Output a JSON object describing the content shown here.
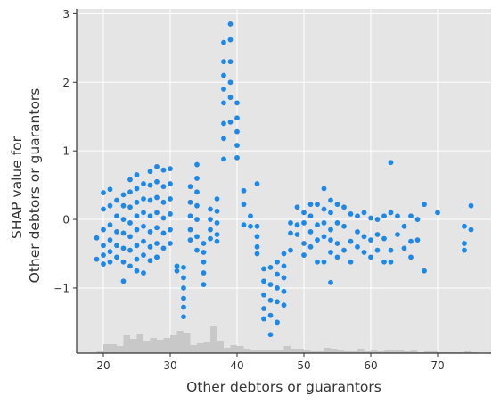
{
  "chart_data": {
    "type": "scatter",
    "title": "",
    "xlabel": "Other debtors or guarantors",
    "ylabel_lines": [
      "SHAP value for",
      "Other debtors or guarantors"
    ],
    "xlim": [
      16,
      78
    ],
    "ylim": [
      -1.95,
      3.07
    ],
    "x_ticks": [
      20,
      30,
      40,
      50,
      60,
      70
    ],
    "y_ticks": [
      -1,
      0,
      1,
      2,
      3
    ],
    "y_tick_labels": [
      "−1",
      "0",
      "1",
      "2",
      "3"
    ],
    "grid": true,
    "colors": {
      "background": "#e5e5e5",
      "grid": "#ffffff",
      "points": "#1e88e5",
      "histogram": "#c8c8c8",
      "axis": "#333333"
    },
    "histogram": {
      "bin_starts": [
        19,
        20,
        21,
        22,
        23,
        24,
        25,
        26,
        27,
        28,
        29,
        30,
        31,
        32,
        33,
        34,
        35,
        36,
        37,
        38,
        39,
        40,
        41,
        42,
        43,
        44,
        45,
        46,
        47,
        48,
        49,
        50,
        51,
        52,
        53,
        54,
        55,
        56,
        57,
        58,
        59,
        60,
        61,
        62,
        63,
        64,
        65,
        66,
        67,
        68,
        69,
        70,
        71,
        72,
        73,
        74,
        75
      ],
      "relative_heights": [
        0.02,
        0.1,
        0.1,
        0.08,
        0.2,
        0.16,
        0.22,
        0.14,
        0.17,
        0.15,
        0.17,
        0.2,
        0.25,
        0.23,
        0.09,
        0.11,
        0.12,
        0.3,
        0.14,
        0.06,
        0.09,
        0.08,
        0.05,
        0.04,
        0.04,
        0.04,
        0.04,
        0.04,
        0.08,
        0.05,
        0.05,
        0.03,
        0.02,
        0.02,
        0.06,
        0.05,
        0.04,
        0.02,
        0.02,
        0.05,
        0.02,
        0.03,
        0.02,
        0.03,
        0.04,
        0.03,
        0.02,
        0.03,
        0.01,
        0.02,
        0.02,
        0.01,
        0.01,
        0.01,
        0.01,
        0.02,
        0.01
      ]
    },
    "points": [
      {
        "x": 19,
        "y": -0.27
      },
      {
        "x": 19,
        "y": -0.58
      },
      {
        "x": 20,
        "y": 0.39
      },
      {
        "x": 20,
        "y": 0.15
      },
      {
        "x": 20,
        "y": -0.15
      },
      {
        "x": 20,
        "y": -0.38
      },
      {
        "x": 20,
        "y": -0.52
      },
      {
        "x": 20,
        "y": -0.65
      },
      {
        "x": 21,
        "y": 0.44
      },
      {
        "x": 21,
        "y": 0.2
      },
      {
        "x": 21,
        "y": -0.08
      },
      {
        "x": 21,
        "y": -0.3
      },
      {
        "x": 21,
        "y": -0.47
      },
      {
        "x": 21,
        "y": -0.62
      },
      {
        "x": 22,
        "y": 0.28
      },
      {
        "x": 22,
        "y": 0.05
      },
      {
        "x": 22,
        "y": -0.18
      },
      {
        "x": 22,
        "y": -0.38
      },
      {
        "x": 22,
        "y": -0.55
      },
      {
        "x": 23,
        "y": 0.36
      },
      {
        "x": 23,
        "y": 0.2
      },
      {
        "x": 23,
        "y": 0.0
      },
      {
        "x": 23,
        "y": -0.2
      },
      {
        "x": 23,
        "y": -0.42
      },
      {
        "x": 23,
        "y": -0.62
      },
      {
        "x": 23,
        "y": -0.9
      },
      {
        "x": 24,
        "y": 0.58
      },
      {
        "x": 24,
        "y": 0.4
      },
      {
        "x": 24,
        "y": 0.18
      },
      {
        "x": 24,
        "y": -0.05
      },
      {
        "x": 24,
        "y": -0.25
      },
      {
        "x": 24,
        "y": -0.45
      },
      {
        "x": 24,
        "y": -0.68
      },
      {
        "x": 25,
        "y": 0.65
      },
      {
        "x": 25,
        "y": 0.45
      },
      {
        "x": 25,
        "y": 0.25
      },
      {
        "x": 25,
        "y": 0.05
      },
      {
        "x": 25,
        "y": -0.15
      },
      {
        "x": 25,
        "y": -0.38
      },
      {
        "x": 25,
        "y": -0.58
      },
      {
        "x": 25,
        "y": -0.75
      },
      {
        "x": 26,
        "y": 0.52
      },
      {
        "x": 26,
        "y": 0.3
      },
      {
        "x": 26,
        "y": 0.1
      },
      {
        "x": 26,
        "y": -0.1
      },
      {
        "x": 26,
        "y": -0.32
      },
      {
        "x": 26,
        "y": -0.52
      },
      {
        "x": 26,
        "y": -0.78
      },
      {
        "x": 27,
        "y": 0.7
      },
      {
        "x": 27,
        "y": 0.5
      },
      {
        "x": 27,
        "y": 0.28
      },
      {
        "x": 27,
        "y": 0.05
      },
      {
        "x": 27,
        "y": -0.18
      },
      {
        "x": 27,
        "y": -0.4
      },
      {
        "x": 27,
        "y": -0.6
      },
      {
        "x": 28,
        "y": 0.77
      },
      {
        "x": 28,
        "y": 0.55
      },
      {
        "x": 28,
        "y": 0.32
      },
      {
        "x": 28,
        "y": 0.1
      },
      {
        "x": 28,
        "y": -0.12
      },
      {
        "x": 28,
        "y": -0.35
      },
      {
        "x": 28,
        "y": -0.55
      },
      {
        "x": 28,
        "y": -0.55
      },
      {
        "x": 29,
        "y": 0.72
      },
      {
        "x": 29,
        "y": 0.48
      },
      {
        "x": 29,
        "y": 0.25
      },
      {
        "x": 29,
        "y": 0.02
      },
      {
        "x": 29,
        "y": -0.2
      },
      {
        "x": 29,
        "y": -0.42
      },
      {
        "x": 30,
        "y": 0.74
      },
      {
        "x": 30,
        "y": 0.52
      },
      {
        "x": 30,
        "y": 0.3
      },
      {
        "x": 30,
        "y": 0.08
      },
      {
        "x": 30,
        "y": -0.15
      },
      {
        "x": 30,
        "y": -0.35
      },
      {
        "x": 31,
        "y": -0.68
      },
      {
        "x": 31,
        "y": -0.75
      },
      {
        "x": 32,
        "y": -0.7
      },
      {
        "x": 32,
        "y": -0.85
      },
      {
        "x": 32,
        "y": -1.0
      },
      {
        "x": 32,
        "y": -1.15
      },
      {
        "x": 32,
        "y": -1.28
      },
      {
        "x": 32,
        "y": -1.42
      },
      {
        "x": 33,
        "y": 0.48
      },
      {
        "x": 33,
        "y": 0.25
      },
      {
        "x": 33,
        "y": 0.05
      },
      {
        "x": 33,
        "y": -0.15
      },
      {
        "x": 33,
        "y": -0.3
      },
      {
        "x": 34,
        "y": 0.8
      },
      {
        "x": 34,
        "y": 0.6
      },
      {
        "x": 34,
        "y": 0.4
      },
      {
        "x": 34,
        "y": 0.2
      },
      {
        "x": 34,
        "y": 0.0
      },
      {
        "x": 34,
        "y": -0.25
      },
      {
        "x": 34,
        "y": -0.45
      },
      {
        "x": 35,
        "y": -0.35
      },
      {
        "x": 35,
        "y": -0.48
      },
      {
        "x": 35,
        "y": -0.62
      },
      {
        "x": 35,
        "y": -0.78
      },
      {
        "x": 35,
        "y": -0.95
      },
      {
        "x": 36,
        "y": 0.15
      },
      {
        "x": 36,
        "y": 0.0
      },
      {
        "x": 36,
        "y": -0.15
      },
      {
        "x": 36,
        "y": -0.28
      },
      {
        "x": 37,
        "y": 0.3
      },
      {
        "x": 37,
        "y": 0.12
      },
      {
        "x": 37,
        "y": -0.05
      },
      {
        "x": 37,
        "y": -0.22
      },
      {
        "x": 37,
        "y": -0.32
      },
      {
        "x": 38,
        "y": 2.58
      },
      {
        "x": 38,
        "y": 2.3
      },
      {
        "x": 38,
        "y": 2.1
      },
      {
        "x": 38,
        "y": 1.9
      },
      {
        "x": 38,
        "y": 1.7
      },
      {
        "x": 38,
        "y": 1.4
      },
      {
        "x": 38,
        "y": 1.18
      },
      {
        "x": 38,
        "y": 0.88
      },
      {
        "x": 39,
        "y": 2.85
      },
      {
        "x": 39,
        "y": 2.62
      },
      {
        "x": 39,
        "y": 2.3
      },
      {
        "x": 39,
        "y": 2.0
      },
      {
        "x": 39,
        "y": 1.78
      },
      {
        "x": 39,
        "y": 1.42
      },
      {
        "x": 40,
        "y": 1.7
      },
      {
        "x": 40,
        "y": 1.48
      },
      {
        "x": 40,
        "y": 1.28
      },
      {
        "x": 40,
        "y": 1.08
      },
      {
        "x": 40,
        "y": 0.9
      },
      {
        "x": 41,
        "y": 0.42
      },
      {
        "x": 41,
        "y": 0.22
      },
      {
        "x": 41,
        "y": -0.08
      },
      {
        "x": 42,
        "y": 0.05
      },
      {
        "x": 42,
        "y": -0.1
      },
      {
        "x": 43,
        "y": 0.52
      },
      {
        "x": 43,
        "y": -0.1
      },
      {
        "x": 43,
        "y": -0.25
      },
      {
        "x": 43,
        "y": -0.4
      },
      {
        "x": 43,
        "y": -0.5
      },
      {
        "x": 44,
        "y": -0.72
      },
      {
        "x": 44,
        "y": -0.9
      },
      {
        "x": 44,
        "y": -1.1
      },
      {
        "x": 44,
        "y": -1.3
      },
      {
        "x": 44,
        "y": -1.45
      },
      {
        "x": 45,
        "y": -0.7
      },
      {
        "x": 45,
        "y": -0.95
      },
      {
        "x": 45,
        "y": -1.18
      },
      {
        "x": 45,
        "y": -1.4
      },
      {
        "x": 45,
        "y": -1.68
      },
      {
        "x": 46,
        "y": -0.62
      },
      {
        "x": 46,
        "y": -0.8
      },
      {
        "x": 46,
        "y": -1.0
      },
      {
        "x": 46,
        "y": -1.2
      },
      {
        "x": 46,
        "y": -1.5
      },
      {
        "x": 47,
        "y": -0.5
      },
      {
        "x": 47,
        "y": -0.68
      },
      {
        "x": 47,
        "y": -0.85
      },
      {
        "x": 47,
        "y": -1.05
      },
      {
        "x": 47,
        "y": -1.25
      },
      {
        "x": 48,
        "y": -0.05
      },
      {
        "x": 48,
        "y": -0.2
      },
      {
        "x": 48,
        "y": -0.45
      },
      {
        "x": 49,
        "y": 0.18
      },
      {
        "x": 49,
        "y": -0.08
      },
      {
        "x": 49,
        "y": -0.22
      },
      {
        "x": 50,
        "y": 0.1
      },
      {
        "x": 50,
        "y": -0.05
      },
      {
        "x": 50,
        "y": -0.35
      },
      {
        "x": 50,
        "y": -0.52
      },
      {
        "x": 51,
        "y": 0.22
      },
      {
        "x": 51,
        "y": 0.05
      },
      {
        "x": 51,
        "y": -0.18
      },
      {
        "x": 51,
        "y": -0.4
      },
      {
        "x": 52,
        "y": 0.22
      },
      {
        "x": 52,
        "y": -0.08
      },
      {
        "x": 52,
        "y": -0.3
      },
      {
        "x": 52,
        "y": -0.62
      },
      {
        "x": 53,
        "y": 0.45
      },
      {
        "x": 53,
        "y": 0.15
      },
      {
        "x": 53,
        "y": -0.05
      },
      {
        "x": 53,
        "y": -0.25
      },
      {
        "x": 53,
        "y": -0.62
      },
      {
        "x": 54,
        "y": 0.28
      },
      {
        "x": 54,
        "y": 0.1
      },
      {
        "x": 54,
        "y": -0.15
      },
      {
        "x": 54,
        "y": -0.3
      },
      {
        "x": 54,
        "y": -0.48
      },
      {
        "x": 54,
        "y": -0.92
      },
      {
        "x": 55,
        "y": 0.22
      },
      {
        "x": 55,
        "y": -0.05
      },
      {
        "x": 55,
        "y": -0.35
      },
      {
        "x": 55,
        "y": -0.55
      },
      {
        "x": 56,
        "y": 0.18
      },
      {
        "x": 56,
        "y": -0.1
      },
      {
        "x": 56,
        "y": -0.45
      },
      {
        "x": 57,
        "y": 0.08
      },
      {
        "x": 57,
        "y": -0.32
      },
      {
        "x": 57,
        "y": -0.62
      },
      {
        "x": 58,
        "y": 0.05
      },
      {
        "x": 58,
        "y": -0.18
      },
      {
        "x": 58,
        "y": -0.4
      },
      {
        "x": 59,
        "y": 0.1
      },
      {
        "x": 59,
        "y": -0.25
      },
      {
        "x": 59,
        "y": -0.48
      },
      {
        "x": 60,
        "y": 0.02
      },
      {
        "x": 60,
        "y": -0.3
      },
      {
        "x": 60,
        "y": -0.55
      },
      {
        "x": 61,
        "y": 0.0
      },
      {
        "x": 61,
        "y": -0.22
      },
      {
        "x": 61,
        "y": -0.45
      },
      {
        "x": 62,
        "y": 0.05
      },
      {
        "x": 62,
        "y": -0.28
      },
      {
        "x": 62,
        "y": -0.62
      },
      {
        "x": 63,
        "y": 0.83
      },
      {
        "x": 63,
        "y": 0.1
      },
      {
        "x": 63,
        "y": -0.45
      },
      {
        "x": 63,
        "y": -0.62
      },
      {
        "x": 64,
        "y": 0.05
      },
      {
        "x": 64,
        "y": -0.22
      },
      {
        "x": 65,
        "y": -0.1
      },
      {
        "x": 65,
        "y": -0.42
      },
      {
        "x": 66,
        "y": 0.05
      },
      {
        "x": 66,
        "y": -0.32
      },
      {
        "x": 66,
        "y": -0.55
      },
      {
        "x": 67,
        "y": 0.0
      },
      {
        "x": 67,
        "y": -0.3
      },
      {
        "x": 68,
        "y": 0.22
      },
      {
        "x": 68,
        "y": -0.75
      },
      {
        "x": 70,
        "y": 0.1
      },
      {
        "x": 74,
        "y": -0.1
      },
      {
        "x": 74,
        "y": -0.35
      },
      {
        "x": 74,
        "y": -0.45
      },
      {
        "x": 75,
        "y": 0.2
      },
      {
        "x": 75,
        "y": -0.15
      }
    ]
  }
}
